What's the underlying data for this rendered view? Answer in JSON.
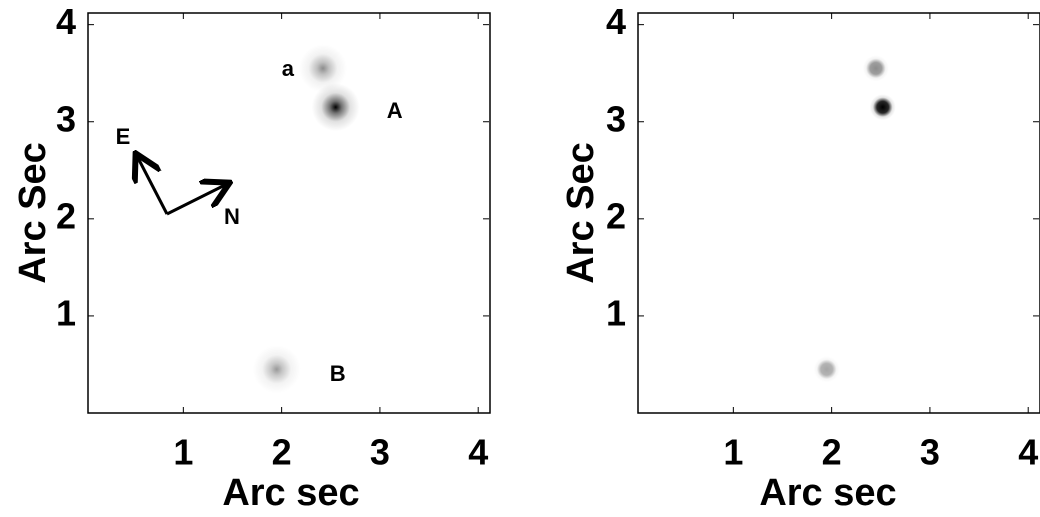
{
  "chart_data": [
    {
      "type": "scatter",
      "xlabel": "Arc sec",
      "ylabel": "Arc Sec",
      "xlim": [
        0.03,
        4.12
      ],
      "ylim": [
        0,
        4.12
      ],
      "xticks": [
        1,
        2,
        3,
        4
      ],
      "yticks": [
        1,
        2,
        3,
        4
      ],
      "x": [
        2.55,
        2.42,
        1.95
      ],
      "values": [
        3.15,
        3.55,
        0.45
      ],
      "intensity": [
        1,
        0.45,
        0.4
      ],
      "annotations": [
        "A",
        "a",
        "B"
      ],
      "compass": [
        "E",
        "N"
      ]
    },
    {
      "type": "scatter",
      "xlabel": "Arc sec",
      "ylabel": "Arc Sec",
      "xlim": [
        0.03,
        4.12
      ],
      "ylim": [
        0,
        4.12
      ],
      "xticks": [
        1,
        2,
        3,
        4
      ],
      "yticks": [
        1,
        2,
        3,
        4
      ],
      "x": [
        2.52,
        2.45,
        1.95
      ],
      "values": [
        3.15,
        3.55,
        0.45
      ],
      "intensity": [
        1,
        0.45,
        0.35
      ]
    }
  ]
}
